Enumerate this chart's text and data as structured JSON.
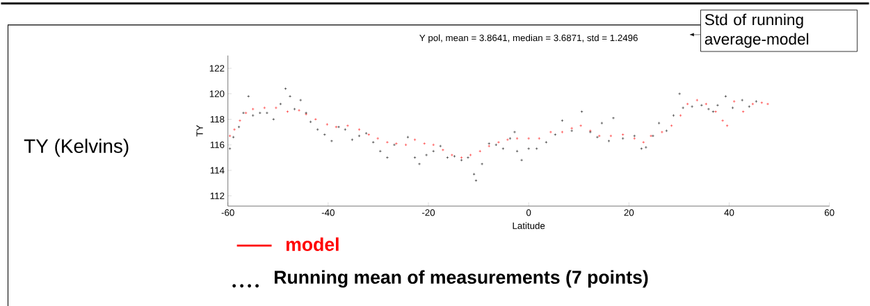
{
  "chart_data": {
    "type": "scatter",
    "title": "Y pol, mean = 3.8641, median = 3.6871, std = 1.2496",
    "xlabel": "Latitude",
    "ylabel": "TY",
    "annotations": [
      "TY (Kelvins)",
      "Std of running average-model"
    ],
    "xlim": [
      -60,
      60
    ],
    "xticks": [
      -60,
      -40,
      -20,
      0,
      20,
      40,
      60
    ],
    "ylim": [
      111.2,
      123
    ],
    "yticks": [
      112,
      114,
      116,
      118,
      120,
      122
    ],
    "marker": "cross",
    "legend": "bottom",
    "series": [
      {
        "name": "model",
        "color": "#ff0000",
        "x": [
          -59.6,
          -58.7,
          -57.6,
          -56.4,
          -55.0,
          -52.7,
          -50.4,
          -48.1,
          -45.8,
          -44.4,
          -42.5,
          -40.2,
          -38.4,
          -36.1,
          -33.8,
          -31.9,
          -30.1,
          -28.2,
          -26.4,
          -24.5,
          -22.7,
          -20.8,
          -19.0,
          -17.1,
          -15.3,
          -13.4,
          -11.6,
          -9.7,
          -7.9,
          -6.0,
          -4.2,
          -2.3,
          0,
          2.1,
          4.4,
          6.7,
          8.6,
          10.4,
          12.3,
          14.1,
          16.4,
          18.8,
          21.1,
          22.9,
          24.4,
          26.6,
          28.5,
          30.3,
          31.7,
          33.6,
          35.4,
          37.3,
          38.7,
          39.6,
          41.0,
          42.8,
          44.7,
          46.5,
          47.7
        ],
        "values": [
          116.7,
          117.2,
          117.9,
          118.5,
          118.8,
          118.9,
          118.9,
          118.6,
          118.7,
          118.4,
          118.0,
          117.6,
          117.4,
          117.5,
          117.2,
          116.8,
          116.5,
          116.2,
          116.1,
          116.0,
          116.4,
          116.1,
          116.0,
          115.6,
          115.2,
          115.0,
          115.2,
          115.5,
          115.9,
          116.2,
          116.4,
          116.5,
          116.5,
          116.5,
          117.0,
          117.0,
          117.3,
          117.5,
          117.1,
          116.7,
          116.7,
          116.8,
          116.5,
          116.2,
          116.7,
          117.0,
          117.5,
          118.3,
          119.2,
          119.5,
          119.2,
          118.6,
          117.9,
          117.5,
          119.4,
          118.6,
          119.2,
          119.3,
          119.2
        ]
      },
      {
        "name": "Running mean of measurements (7 points)",
        "color": "#000000",
        "x": [
          -59.6,
          -58.9,
          -57.8,
          -56.9,
          -55.9,
          -55.0,
          -53.6,
          -52.2,
          -50.9,
          -49.5,
          -48.5,
          -47.6,
          -46.7,
          -45.5,
          -44.4,
          -43.5,
          -42.1,
          -40.7,
          -39.3,
          -37.9,
          -36.6,
          -35.2,
          -33.8,
          -32.4,
          -31.0,
          -29.6,
          -28.2,
          -26.8,
          -24.1,
          -22.7,
          -21.8,
          -20.4,
          -19.0,
          -17.6,
          -16.2,
          -14.8,
          -13.4,
          -12.1,
          -10.9,
          -10.5,
          -9.3,
          -7.9,
          -6.5,
          -5.1,
          -3.7,
          -2.8,
          -2.3,
          -1.4,
          0,
          1.6,
          3.5,
          5.3,
          6.7,
          8.6,
          10.6,
          12.3,
          13.7,
          14.6,
          16.0,
          16.9,
          18.8,
          21.1,
          22.5,
          23.4,
          24.8,
          26.0,
          27.5,
          28.9,
          30.1,
          30.8,
          32.6,
          34.5,
          35.9,
          36.8,
          37.7,
          39.3,
          40.7,
          42.6,
          44.0,
          45.4
        ],
        "values": [
          115.7,
          116.6,
          117.4,
          118.5,
          119.8,
          118.3,
          118.5,
          118.5,
          118.0,
          119.2,
          120.4,
          119.8,
          118.8,
          119.5,
          118.5,
          117.8,
          117.2,
          116.8,
          116.3,
          117.4,
          117.2,
          116.4,
          116.7,
          116.9,
          116.2,
          115.5,
          115.0,
          116.0,
          116.6,
          115.0,
          114.5,
          115.2,
          115.5,
          115.9,
          115.0,
          115.1,
          114.8,
          115.0,
          113.7,
          113.2,
          114.5,
          116.1,
          116.0,
          115.7,
          116.5,
          117.0,
          115.5,
          114.8,
          115.7,
          115.7,
          116.2,
          116.8,
          117.9,
          117.1,
          118.6,
          117.0,
          116.6,
          117.7,
          116.3,
          118.1,
          116.5,
          116.7,
          115.7,
          115.8,
          116.7,
          117.7,
          117.1,
          118.3,
          120.0,
          118.9,
          119.0,
          119.1,
          118.8,
          118.6,
          119.1,
          119.8,
          118.9,
          119.5,
          119.0,
          119.4
        ]
      }
    ]
  }
}
